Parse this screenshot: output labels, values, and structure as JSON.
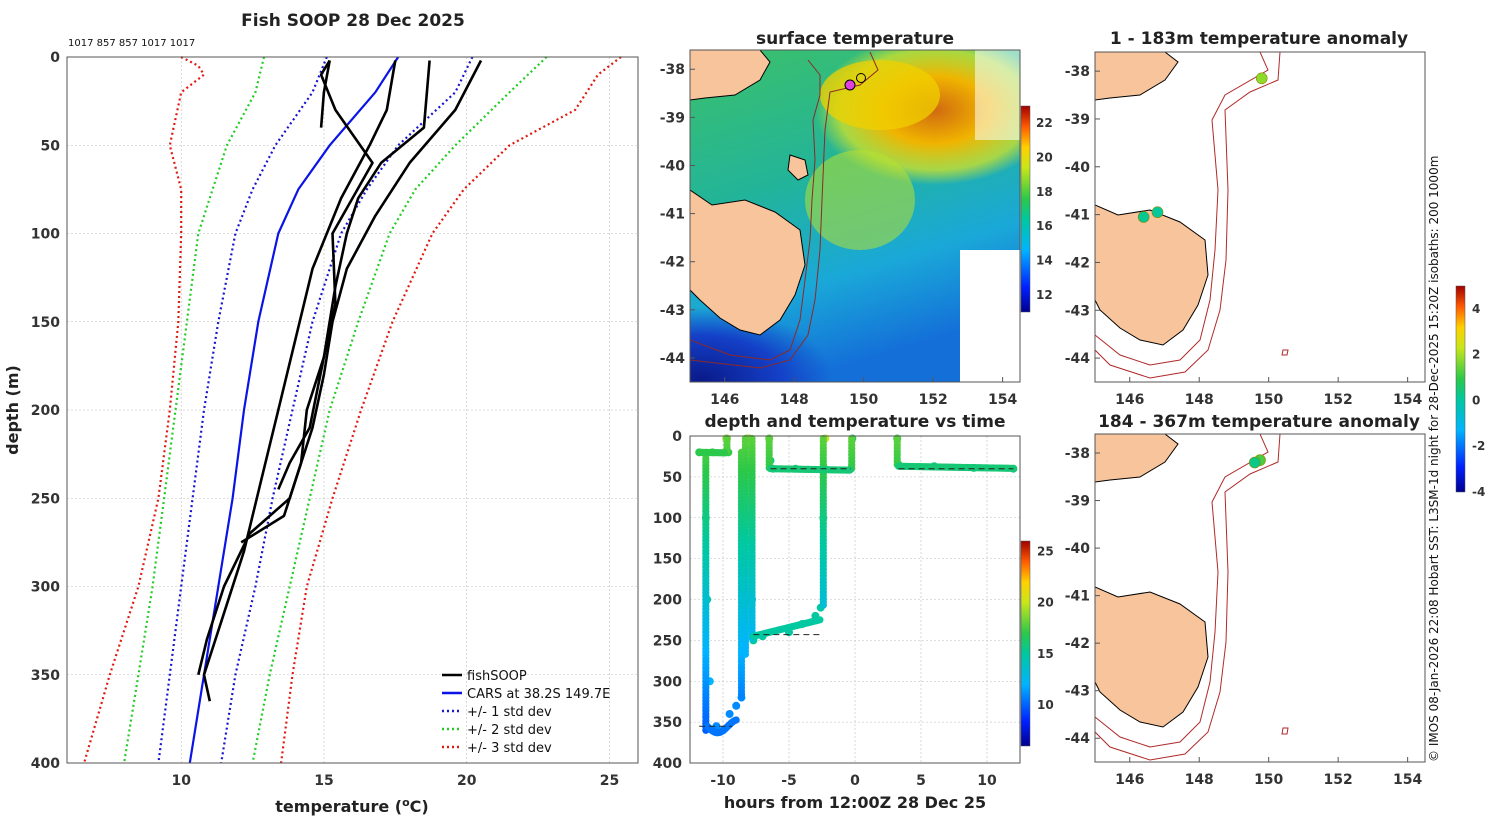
{
  "page": {
    "credit_text": "© IMOS 08-Jan-2026 22:08 Hobart SST: L3SM-1d night for 28-Dec-2025 15:20Z isobaths: 200  1000m"
  },
  "chart_data": [
    {
      "id": "profile",
      "type": "line",
      "title": "Fish SOOP 28 Dec 2025",
      "subtitle": "1017 857 857 1017 1017",
      "xlabel": "temperature (°C)",
      "ylabel": "depth (m)",
      "xlim": [
        6,
        26
      ],
      "ylim": [
        400,
        0
      ],
      "xticks": [
        10,
        15,
        20,
        25
      ],
      "yticks": [
        0,
        50,
        100,
        150,
        200,
        250,
        300,
        350,
        400
      ],
      "legend_position": "bottom-right",
      "legend": [
        "fishSOOP",
        "CARS at 38.2S 149.7E",
        "+/- 1 std dev",
        "+/- 2 std dev",
        "+/- 3 std dev"
      ],
      "colors": {
        "fishsoop": "#000000",
        "cars": "#0a14e6",
        "std1": "#1515d0",
        "std2": "#22cc22",
        "std3": "#e01a10"
      },
      "series": [
        {
          "name": "CARS at 38.2S 149.7E",
          "depth": [
            0,
            20,
            50,
            75,
            100,
            150,
            200,
            250,
            300,
            350,
            400
          ],
          "temperature": [
            17.6,
            16.8,
            15.2,
            14.1,
            13.4,
            12.7,
            12.2,
            11.8,
            11.3,
            10.8,
            10.3
          ]
        },
        {
          "name": "+1 std dev",
          "depth": [
            0,
            20,
            50,
            75,
            100,
            150,
            200,
            250,
            300,
            350,
            400
          ],
          "temperature": [
            20.2,
            19.6,
            17.6,
            16.5,
            15.6,
            14.6,
            13.9,
            13.2,
            12.6,
            11.9,
            11.4
          ]
        },
        {
          "name": "-1 std dev",
          "depth": [
            0,
            20,
            50,
            75,
            100,
            150,
            200,
            250,
            300,
            350,
            400
          ],
          "temperature": [
            15.1,
            14.6,
            13.3,
            12.5,
            11.9,
            11.3,
            10.8,
            10.4,
            10.0,
            9.6,
            9.2
          ]
        },
        {
          "name": "+2 std dev",
          "depth": [
            0,
            20,
            50,
            75,
            100,
            150,
            200,
            250,
            300,
            350,
            400
          ],
          "temperature": [
            22.8,
            21.5,
            19.6,
            18.2,
            17.3,
            16.2,
            15.2,
            14.5,
            13.8,
            13.1,
            12.5
          ]
        },
        {
          "name": "-2 std dev",
          "depth": [
            0,
            20,
            50,
            75,
            100,
            150,
            200,
            250,
            300,
            350,
            400
          ],
          "temperature": [
            12.9,
            12.6,
            11.6,
            11.1,
            10.6,
            10.2,
            9.8,
            9.4,
            9.0,
            8.5,
            8.0
          ]
        },
        {
          "name": "+3 std dev",
          "depth": [
            0,
            10,
            30,
            50,
            75,
            100,
            150,
            200,
            250,
            300,
            350,
            400
          ],
          "temperature": [
            25.4,
            24.6,
            23.8,
            21.5,
            19.9,
            18.8,
            17.4,
            16.3,
            15.3,
            14.4,
            13.9,
            13.5
          ]
        },
        {
          "name": "-3 std dev",
          "depth": [
            0,
            5,
            10,
            20,
            50,
            75,
            100,
            150,
            200,
            250,
            300,
            350,
            400
          ],
          "temperature": [
            10.0,
            10.6,
            10.8,
            10.0,
            9.6,
            10.0,
            10.0,
            9.9,
            9.6,
            9.2,
            8.5,
            7.5,
            6.6
          ]
        },
        {
          "name": "fishSOOP",
          "depth": [
            2,
            20,
            40
          ],
          "temperature": [
            15.2,
            15.0,
            14.9
          ]
        },
        {
          "name": "fishSOOP",
          "depth": [
            2,
            30,
            50,
            80,
            120,
            160,
            200,
            240,
            280,
            320,
            350,
            365
          ],
          "temperature": [
            17.5,
            17.2,
            16.6,
            15.6,
            14.6,
            14.0,
            13.4,
            12.8,
            12.2,
            11.4,
            10.8,
            11.0
          ]
        },
        {
          "name": "fishSOOP",
          "depth": [
            2,
            40,
            60,
            80,
            100,
            130,
            170,
            200,
            230,
            250,
            270,
            300,
            330,
            350
          ],
          "temperature": [
            18.7,
            18.5,
            17.0,
            16.2,
            15.8,
            15.4,
            15.0,
            14.4,
            14.2,
            13.8,
            12.4,
            11.5,
            10.9,
            10.6
          ]
        },
        {
          "name": "fishSOOP",
          "depth": [
            2,
            30,
            60,
            90,
            120,
            150,
            180,
            210,
            240,
            260,
            275
          ],
          "temperature": [
            20.5,
            19.6,
            18.0,
            16.8,
            15.8,
            15.3,
            15.0,
            14.6,
            14.0,
            13.6,
            12.1
          ]
        },
        {
          "name": "fishSOOP",
          "depth": [
            2,
            10,
            30,
            60,
            100,
            140,
            170,
            210,
            230,
            245
          ],
          "temperature": [
            15.2,
            14.9,
            15.4,
            16.7,
            15.3,
            15.4,
            15.0,
            14.5,
            13.8,
            13.4
          ]
        }
      ]
    },
    {
      "id": "sst_map",
      "type": "heatmap",
      "title": "surface temperature",
      "xlim": [
        145,
        154.5
      ],
      "ylim": [
        -44.5,
        -37.6
      ],
      "xticks": [
        146,
        148,
        150,
        152,
        154
      ],
      "yticks": [
        -38,
        -39,
        -40,
        -41,
        -42,
        -43,
        -44
      ],
      "colorbar_ticks": [
        12,
        14,
        16,
        18,
        20,
        22
      ],
      "colorbar_range": [
        11,
        23
      ],
      "fishsoop_location": {
        "lon": 149.7,
        "lat": -38.1
      }
    },
    {
      "id": "depth_time",
      "type": "scatter",
      "title": "depth and temperature vs time",
      "xlabel": "hours from 12:00Z 28 Dec 25",
      "xlim": [
        -12.5,
        12.5
      ],
      "ylim": [
        400,
        0
      ],
      "xticks": [
        -10,
        -5,
        0,
        5,
        10
      ],
      "yticks": [
        0,
        50,
        100,
        150,
        200,
        250,
        300,
        350,
        400
      ],
      "colorbar_ticks": [
        10,
        15,
        20,
        25
      ],
      "colorbar_range": [
        6,
        26
      ],
      "hours": [
        -11.8,
        -10.8,
        -9.8,
        -9.7,
        -9.6,
        -8.3,
        -8.25,
        -8.2,
        -8.0,
        -7.8,
        -7.7,
        -6.5,
        -6.4,
        -6.2,
        -4.5,
        -2.4,
        -2.3,
        -2.2,
        -0.3,
        -0.2,
        3.2,
        3.3,
        6,
        9,
        12
      ],
      "depths": [
        20,
        20,
        20,
        20,
        3,
        3,
        40,
        3,
        3,
        3,
        3,
        3,
        30,
        40,
        40,
        40,
        3,
        40,
        40,
        3,
        3,
        35,
        37,
        39,
        40
      ],
      "temps": [
        17,
        17,
        17,
        17,
        19,
        19,
        17,
        19,
        19,
        19,
        19,
        17,
        16,
        16,
        16,
        16,
        20,
        16,
        16,
        16,
        16,
        16,
        16,
        16,
        16
      ]
    },
    {
      "id": "anom_upper",
      "type": "scatter",
      "title": "1 - 183m temperature anomaly",
      "xlim": [
        145,
        154.5
      ],
      "ylim": [
        -44.5,
        -37.6
      ],
      "xticks": [
        146,
        148,
        150,
        152,
        154
      ],
      "yticks": [
        -38,
        -39,
        -40,
        -41,
        -42,
        -43,
        -44
      ],
      "points": [
        {
          "lon": 149.8,
          "lat": -38.15,
          "anomaly": 1.8
        },
        {
          "lon": 146.4,
          "lat": -41.05,
          "anomaly": 0.2
        },
        {
          "lon": 146.8,
          "lat": -40.95,
          "anomaly": 0.1
        }
      ]
    },
    {
      "id": "anom_lower",
      "type": "scatter",
      "title": "184 - 367m temperature anomaly",
      "xlim": [
        145,
        154.5
      ],
      "ylim": [
        -44.5,
        -37.6
      ],
      "xticks": [
        146,
        148,
        150,
        152,
        154
      ],
      "yticks": [
        -38,
        -39,
        -40,
        -41,
        -42,
        -43,
        -44
      ],
      "points": [
        {
          "lon": 149.75,
          "lat": -38.15,
          "anomaly": 1.2
        },
        {
          "lon": 149.6,
          "lat": -38.2,
          "anomaly": 0.3
        }
      ],
      "colorbar_ticks": [
        4,
        2,
        0,
        -2,
        -4
      ],
      "colorbar_range": [
        -4,
        5
      ]
    }
  ]
}
